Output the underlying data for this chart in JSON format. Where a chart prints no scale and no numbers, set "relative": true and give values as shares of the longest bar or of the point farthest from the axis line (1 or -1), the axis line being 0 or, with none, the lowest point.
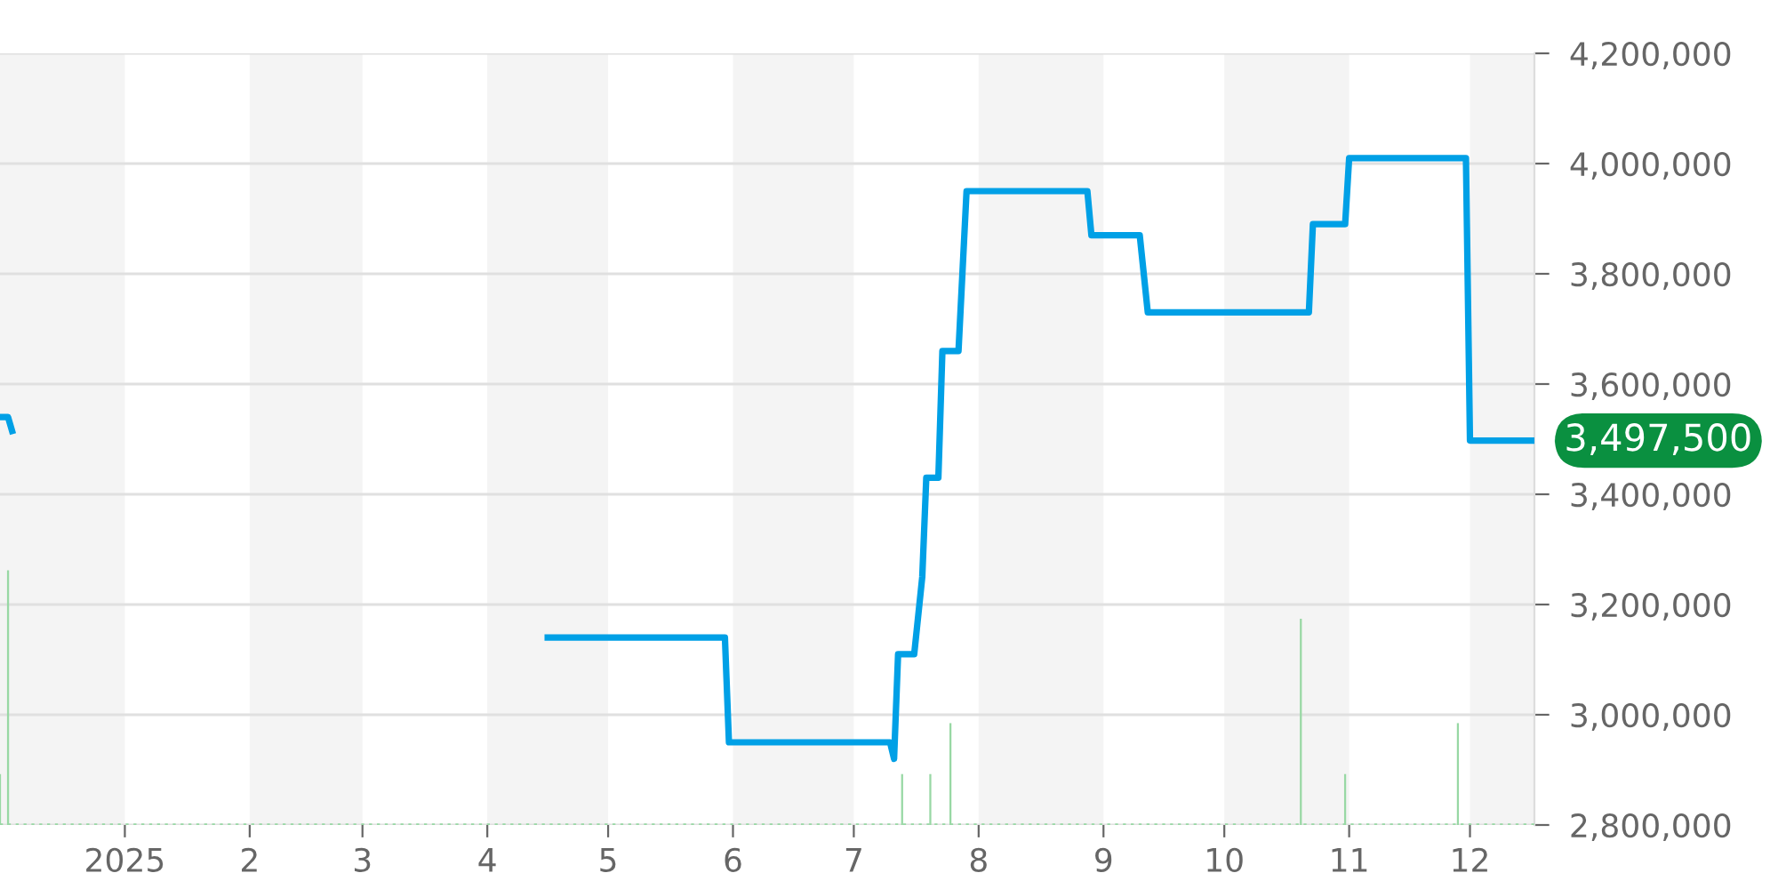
{
  "chart_data": [
    {
      "type": "line",
      "x": [
        "2024-12-01",
        "2024-12-03",
        "2024-12-04",
        "2025-01-01",
        "2025-04-16",
        "2025-05-30",
        "2025-05-31",
        "2025-07-10",
        "2025-07-11",
        "2025-07-12",
        "2025-07-16",
        "2025-07-18",
        "2025-07-19",
        "2025-07-22",
        "2025-07-23",
        "2025-07-27",
        "2025-07-29",
        "2025-08-28",
        "2025-08-29",
        "2025-09-10",
        "2025-09-12",
        "2025-10-22",
        "2025-10-23",
        "2025-10-31",
        "2025-11-01",
        "2025-11-30",
        "2025-12-01",
        "2025-12-17"
      ],
      "series": [
        {
          "color": "#00a0e6",
          "values": [
            3540000,
            3540000,
            3515000,
            null,
            3140000,
            3140000,
            2950000,
            2950000,
            2920000,
            3110000,
            3110000,
            3250000,
            3430000,
            3430000,
            3660000,
            3660000,
            3950000,
            3950000,
            3870000,
            3870000,
            3730000,
            3730000,
            3890000,
            3890000,
            4010000,
            4010000,
            3497500,
            3497500
          ]
        }
      ],
      "xlim": [
        "2024-12-01",
        "2025-12-17"
      ],
      "xticks": [
        {
          "value": "2025-01-01",
          "label": "2025"
        },
        {
          "value": "2025-02-01",
          "label": "2"
        },
        {
          "value": "2025-03-01",
          "label": "3"
        },
        {
          "value": "2025-04-01",
          "label": "4"
        },
        {
          "value": "2025-05-01",
          "label": "5"
        },
        {
          "value": "2025-06-01",
          "label": "6"
        },
        {
          "value": "2025-07-01",
          "label": "7"
        },
        {
          "value": "2025-08-01",
          "label": "8"
        },
        {
          "value": "2025-09-01",
          "label": "9"
        },
        {
          "value": "2025-10-01",
          "label": "10"
        },
        {
          "value": "2025-11-01",
          "label": "11"
        },
        {
          "value": "2025-12-01",
          "label": "12"
        }
      ],
      "ylim": [
        2800000,
        4200000
      ],
      "yticks": [
        {
          "value": 2800000,
          "label": "2,800,000"
        },
        {
          "value": 3000000,
          "label": "3,000,000"
        },
        {
          "value": 3200000,
          "label": "3,200,000"
        },
        {
          "value": 3400000,
          "label": "3,400,000"
        },
        {
          "value": 3600000,
          "label": "3,600,000"
        },
        {
          "value": 3800000,
          "label": "3,800,000"
        },
        {
          "value": 4000000,
          "label": "4,000,000"
        },
        {
          "value": 4200000,
          "label": "4,200,000"
        }
      ],
      "grid": "y",
      "marker": "none",
      "line_style": "solid",
      "bands": [
        {
          "axis": "x",
          "from": "2024-12-01",
          "to": "2025-01-01",
          "color": "#f4f4f4"
        },
        {
          "axis": "x",
          "from": "2025-02-01",
          "to": "2025-03-01",
          "color": "#f4f4f4"
        },
        {
          "axis": "x",
          "from": "2025-04-01",
          "to": "2025-05-01",
          "color": "#f4f4f4"
        },
        {
          "axis": "x",
          "from": "2025-06-01",
          "to": "2025-07-01",
          "color": "#f4f4f4"
        },
        {
          "axis": "x",
          "from": "2025-08-01",
          "to": "2025-09-01",
          "color": "#f4f4f4"
        },
        {
          "axis": "x",
          "from": "2025-10-01",
          "to": "2025-11-01",
          "color": "#f4f4f4"
        },
        {
          "axis": "x",
          "from": "2025-12-01",
          "to": "2025-12-17",
          "color": "#f4f4f4"
        }
      ],
      "annotations": [
        {
          "text": "3,497,500",
          "x": "2025-12-17",
          "y": 3497500
        }
      ]
    },
    {
      "type": "bar",
      "relative": true,
      "x": [
        "2024-12-01",
        "2024-12-03",
        "2025-07-13",
        "2025-07-20",
        "2025-07-25",
        "2025-10-20",
        "2025-10-31",
        "2025-11-28"
      ],
      "values": [
        0.2,
        1,
        0.2,
        0.2,
        0.4,
        0.81,
        0.2,
        0.4
      ],
      "color": "#98d8a4",
      "xlim": [
        "2024-12-01",
        "2025-12-17"
      ]
    }
  ]
}
